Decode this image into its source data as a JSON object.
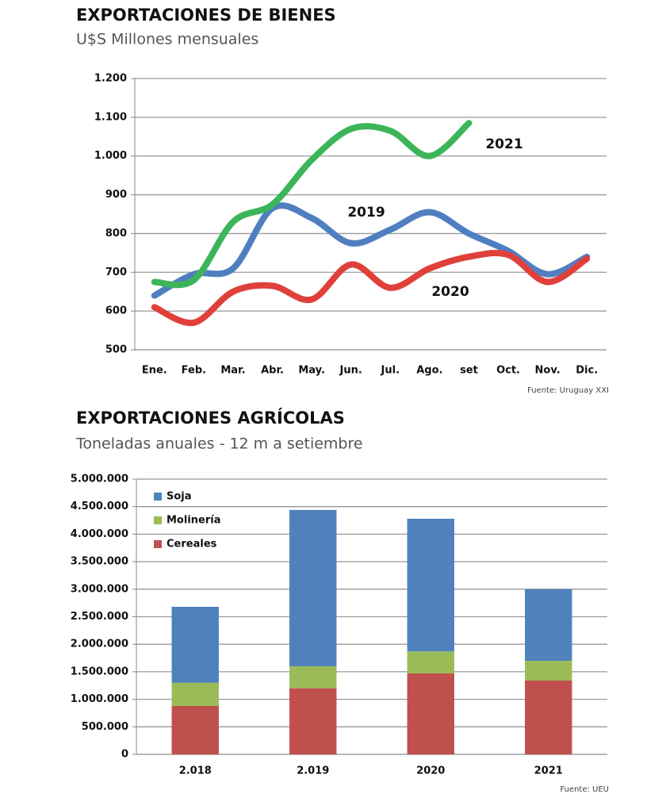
{
  "chart_data": [
    {
      "type": "line",
      "title": "EXPORTACIONES DE BIENES",
      "subtitle": "U$S Millones  mensuales",
      "source": "Fuente: Uruguay XXI",
      "categories": [
        "Ene.",
        "Feb.",
        "Mar.",
        "Abr.",
        "May.",
        "Jun.",
        "Jul.",
        "Ago.",
        "set",
        "Oct.",
        "Nov.",
        "Dic."
      ],
      "series": [
        {
          "name": "2019",
          "color": "#4f7fc0",
          "values": [
            640,
            695,
            710,
            865,
            840,
            775,
            810,
            855,
            800,
            755,
            695,
            740
          ]
        },
        {
          "name": "2020",
          "color": "#e0403a",
          "values": [
            610,
            570,
            650,
            665,
            630,
            720,
            660,
            710,
            740,
            745,
            675,
            735
          ]
        },
        {
          "name": "2021",
          "color": "#3cb55a",
          "values": [
            675,
            680,
            830,
            875,
            990,
            1070,
            1065,
            1000,
            1085,
            null,
            null,
            null
          ]
        }
      ],
      "ylim": [
        500,
        1200
      ],
      "yticks": [
        500,
        600,
        700,
        800,
        900,
        {
          "value": 1000,
          "label": "1.000"
        },
        {
          "value": 1100,
          "label": "1.100"
        },
        {
          "value": 1200,
          "label": "1.200"
        }
      ],
      "grid": true
    },
    {
      "type": "stacked_bar",
      "title": "EXPORTACIONES AGRÍCOLAS",
      "subtitle": "Toneladas anuales - 12 m a setiembre",
      "source": "Fuente: UEU",
      "categories": [
        "2.018",
        "2.019",
        "2020",
        "2021"
      ],
      "series": [
        {
          "name": "Cereales",
          "color": "#c0504d",
          "values": [
            880000,
            1200000,
            1470000,
            1340000
          ]
        },
        {
          "name": "Molinería",
          "color": "#9bbb59",
          "values": [
            420000,
            400000,
            400000,
            360000
          ]
        },
        {
          "name": "Soja",
          "color": "#4f81bd",
          "values": [
            1380000,
            2840000,
            2410000,
            1300000
          ]
        }
      ],
      "ylim": [
        0,
        5000000
      ],
      "yticks": [
        0,
        {
          "value": 500000,
          "label": "500.000"
        },
        {
          "value": 1000000,
          "label": "1.000.000"
        },
        {
          "value": 1500000,
          "label": "1.500.000"
        },
        {
          "value": 2000000,
          "label": "2.000.000"
        },
        {
          "value": 2500000,
          "label": "2.500.000"
        },
        {
          "value": 3000000,
          "label": "3.000.000"
        },
        {
          "value": 3500000,
          "label": "3.500.000"
        },
        {
          "value": 4000000,
          "label": "4.000.000"
        },
        {
          "value": 4500000,
          "label": "4.500.000"
        },
        {
          "value": 5000000,
          "label": "5.000.000"
        }
      ],
      "grid": true,
      "legend": "top-left"
    }
  ]
}
